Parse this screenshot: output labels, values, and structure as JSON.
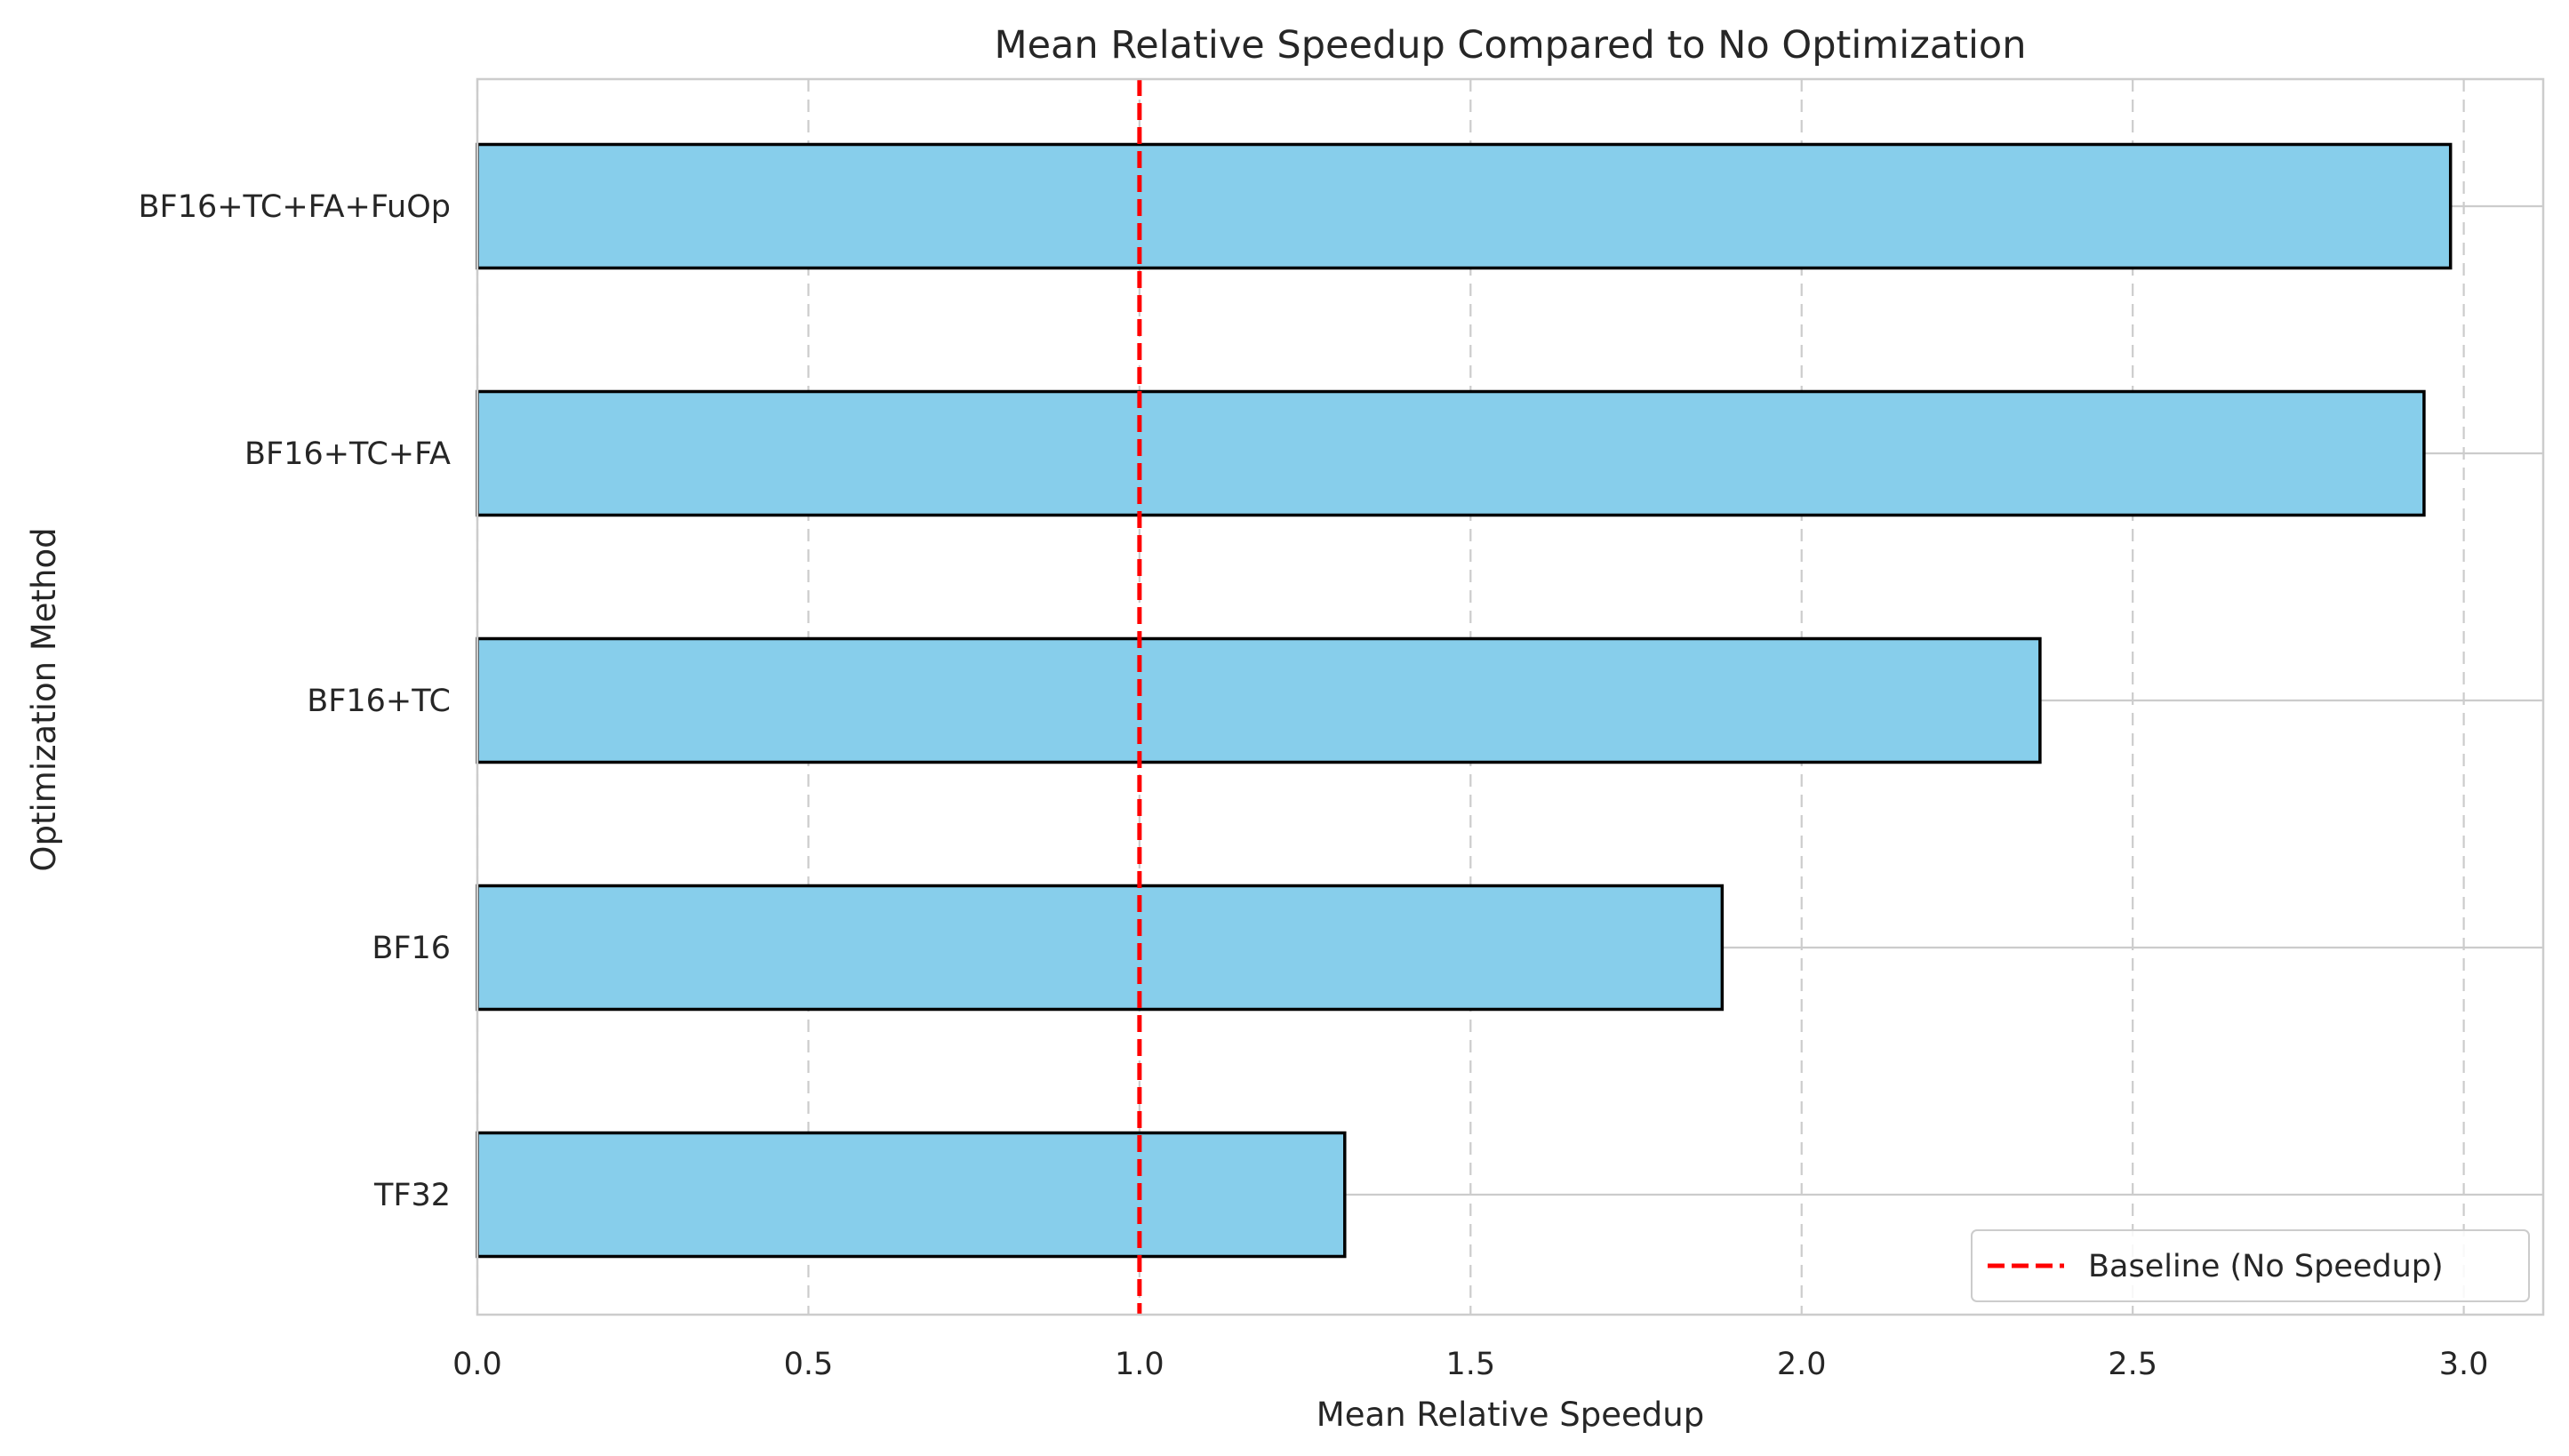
{
  "chart_data": {
    "type": "bar",
    "orientation": "horizontal",
    "title": "Mean Relative Speedup Compared to No Optimization",
    "xlabel": "Mean Relative Speedup",
    "ylabel": "Optimization Method",
    "categories": [
      "BF16+TC+FA+FuOp",
      "BF16+TC+FA",
      "BF16+TC",
      "BF16",
      "TF32"
    ],
    "values": [
      2.98,
      2.94,
      2.36,
      1.88,
      1.31
    ],
    "xlim": [
      0.0,
      3.12
    ],
    "xticks": [
      "0.0",
      "0.5",
      "1.0",
      "1.5",
      "2.0",
      "2.5",
      "3.0"
    ],
    "xtick_values": [
      0.0,
      0.5,
      1.0,
      1.5,
      2.0,
      2.5,
      3.0
    ],
    "grid": "x dashed, y solid",
    "baseline": {
      "value": 1.0,
      "label": "Baseline (No Speedup)",
      "style": "dashed"
    },
    "legend_position": "lower-right",
    "colors": {
      "bar": "#87ceeb",
      "bar_edge": "#000000",
      "baseline": "#ff0000",
      "grid": "#cccccc",
      "axes": "#cccccc"
    }
  }
}
